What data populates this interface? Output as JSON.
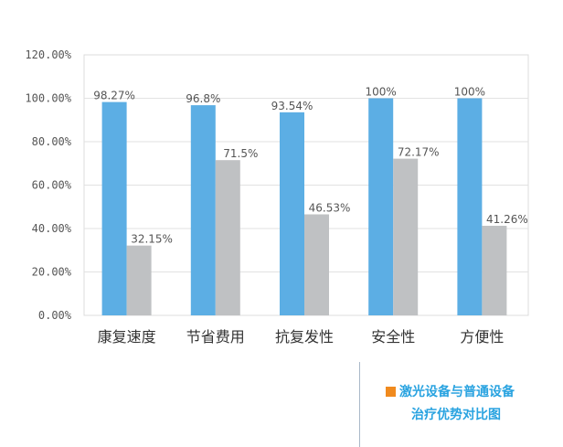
{
  "chart_data": {
    "type": "bar",
    "categories": [
      "康复速度",
      "节省费用",
      "抗复发性",
      "安全性",
      "方便性"
    ],
    "series": [
      {
        "values": [
          98.27,
          96.8,
          93.54,
          100,
          100
        ],
        "labels": [
          "98.27%",
          "96.8%",
          "93.54%",
          "100%",
          "100%"
        ],
        "color": "#5caee4"
      },
      {
        "values": [
          32.15,
          71.5,
          46.53,
          72.17,
          41.26
        ],
        "labels": [
          "32.15%",
          "71.5%",
          "46.53%",
          "72.17%",
          "41.26%"
        ],
        "color": "#bfc1c3"
      }
    ],
    "yticks": [
      "0.00%",
      "20.00%",
      "40.00%",
      "60.00%",
      "80.00%",
      "100.00%",
      "120.00%"
    ],
    "ylim": [
      0,
      120
    ],
    "grid": true
  },
  "caption": {
    "line1": "激光设备与普通设备",
    "line2": "治疗优势对比图",
    "text_color": "#29a3e0",
    "marker_color": "#f08a1e"
  }
}
